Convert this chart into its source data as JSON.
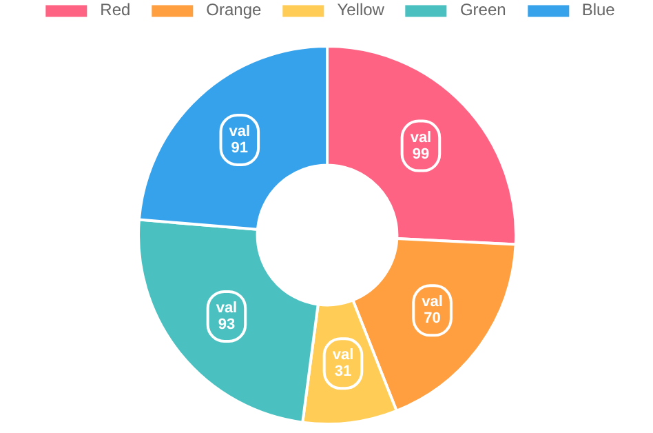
{
  "chart_data": {
    "type": "donut",
    "categories": [
      "Red",
      "Orange",
      "Yellow",
      "Green",
      "Blue"
    ],
    "values": [
      99,
      70,
      31,
      93,
      91
    ],
    "colors": [
      "#ff6384",
      "#ff9f40",
      "#ffcd56",
      "#4bc0c0",
      "#36a2eb"
    ],
    "value_labels": [
      "val\n99",
      "val\n70",
      "val\n31",
      "val\n93",
      "val\n91"
    ],
    "legend": "top"
  }
}
